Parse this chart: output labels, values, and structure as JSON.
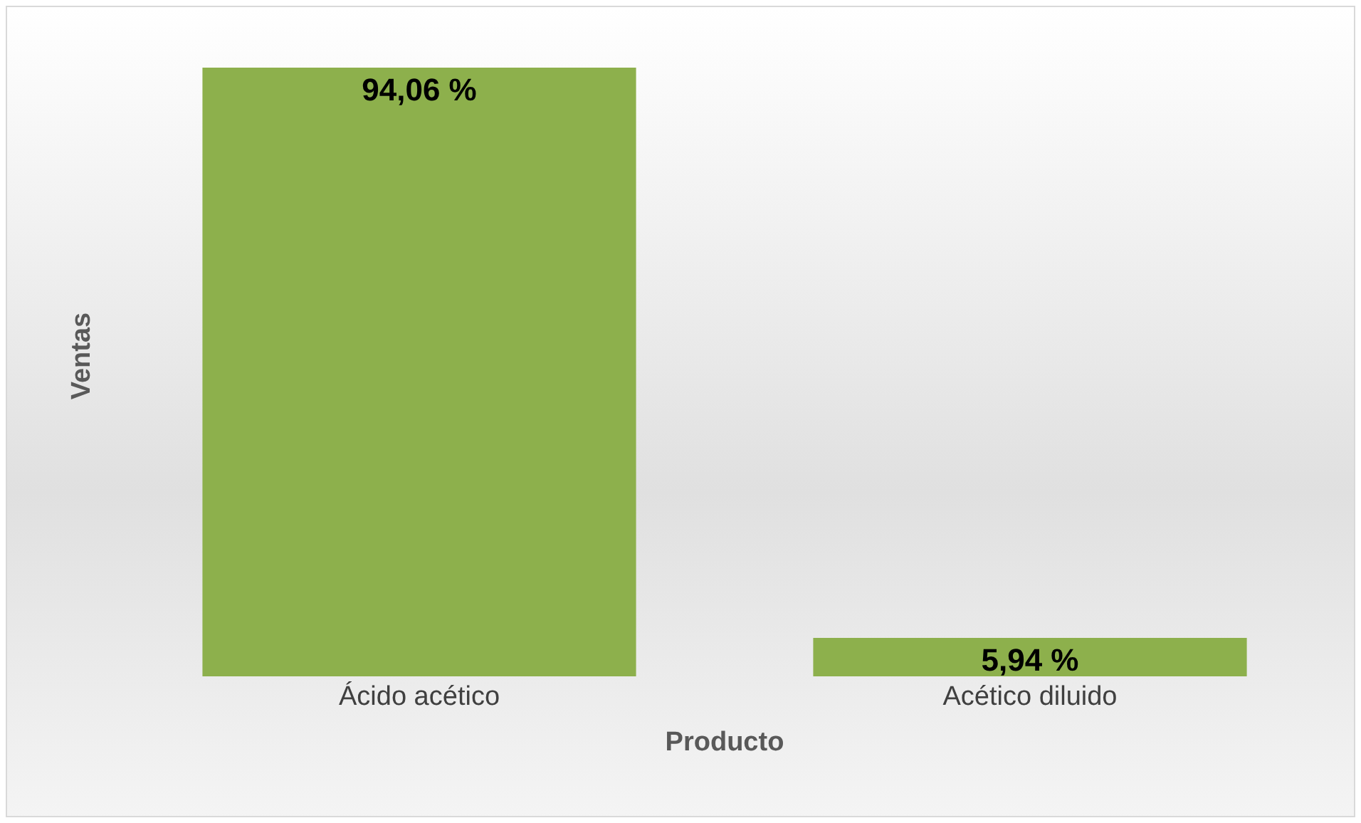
{
  "chart_data": {
    "type": "bar",
    "xlabel": "Producto",
    "ylabel": "Ventas",
    "categories": [
      "Ácido acético",
      "Acético diluido"
    ],
    "values": [
      94.06,
      5.94
    ],
    "value_labels": [
      "94,06 %",
      "5,94 %"
    ],
    "color": "#8db04c",
    "tick_labels": "x"
  }
}
